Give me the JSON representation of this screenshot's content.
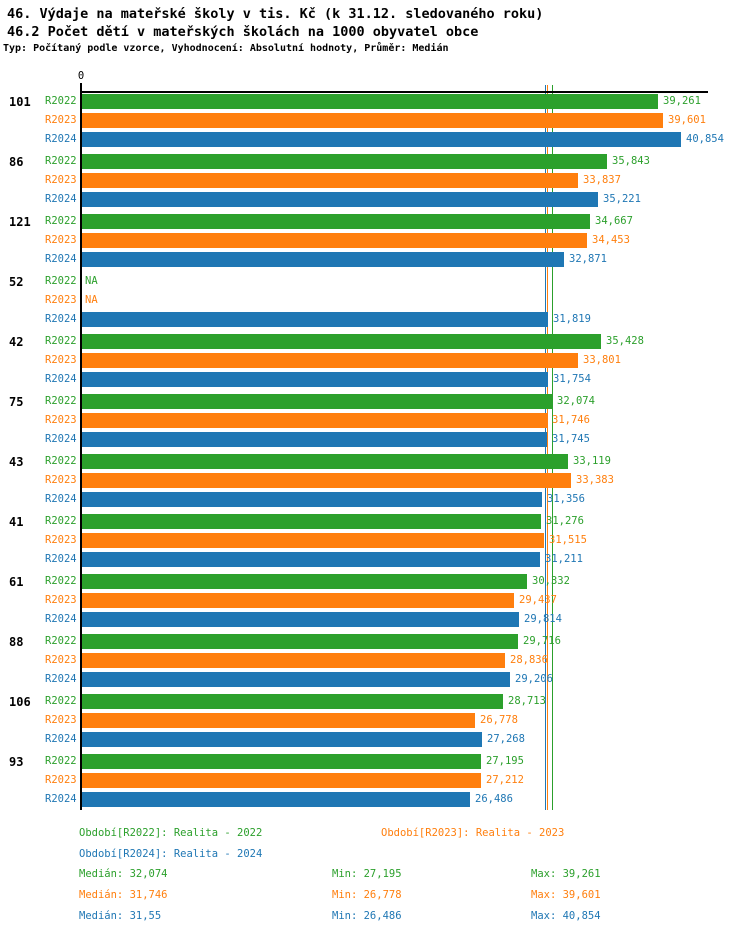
{
  "titles": {
    "line1": "46. Výdaje na mateřské školy v tis. Kč (k 31.12. sledovaného roku)",
    "line2": "46.2 Počet dětí v mateřských školách na 1000 obyvatel obce",
    "subtitle": "Typ: Počítaný podle vzorce, Vyhodnocení: Absolutní hodnoty, Průměr: Medián"
  },
  "axis": {
    "zero_label": "0"
  },
  "colors": {
    "r2022": "#2ca02c",
    "r2023": "#ff7f0e",
    "r2024": "#1f77b4",
    "axis": "#000000"
  },
  "chart_data": {
    "type": "bar",
    "orientation": "horizontal",
    "title": "46. Výdaje na mateřské školy v tis. Kč (k 31.12. sledovaného roku)",
    "subtitle": "46.2 Počet dětí v mateřských školách na 1000 obyvatel obce",
    "value_axis": {
      "min": 0,
      "approx_max": 42.8,
      "tick_labels": [
        "0"
      ],
      "grid": false
    },
    "categories": [
      "101",
      "86",
      "121",
      "52",
      "42",
      "75",
      "43",
      "41",
      "61",
      "88",
      "106",
      "93"
    ],
    "series": [
      {
        "name": "R2022",
        "color": "#2ca02c",
        "values": [
          39.261,
          35.843,
          34.667,
          null,
          35.428,
          32.074,
          33.119,
          31.276,
          30.332,
          29.716,
          28.713,
          27.195
        ],
        "labels": [
          "39,261",
          "35,843",
          "34,667",
          "NA",
          "35,428",
          "32,074",
          "33,119",
          "31,276",
          "30,332",
          "29,716",
          "28,713",
          "27,195"
        ],
        "median": 32.074
      },
      {
        "name": "R2023",
        "color": "#ff7f0e",
        "values": [
          39.601,
          33.837,
          34.453,
          null,
          33.801,
          31.746,
          33.383,
          31.515,
          29.437,
          28.836,
          26.778,
          27.212
        ],
        "labels": [
          "39,601",
          "33,837",
          "34,453",
          "NA",
          "33,801",
          "31,746",
          "33,383",
          "31,515",
          "29,437",
          "28,836",
          "26,778",
          "27,212"
        ],
        "median": 31.746
      },
      {
        "name": "R2024",
        "color": "#1f77b4",
        "values": [
          40.854,
          35.221,
          32.871,
          31.819,
          31.754,
          31.745,
          31.356,
          31.211,
          29.814,
          29.206,
          27.268,
          26.486
        ],
        "labels": [
          "40,854",
          "35,221",
          "32,871",
          "31,819",
          "31,754",
          "31,745",
          "31,356",
          "31,211",
          "29,814",
          "29,206",
          "27,268",
          "26,486"
        ],
        "median": 31.55
      }
    ],
    "legend_position": "bottom"
  },
  "legend": {
    "period_entries": [
      {
        "id": "r2022",
        "text": "Období[R2022]: Realita - 2022",
        "color": "#2ca02c"
      },
      {
        "id": "r2023",
        "text": "Období[R2023]: Realita - 2023",
        "color": "#ff7f0e"
      },
      {
        "id": "r2024",
        "text": "Období[R2024]: Realita - 2024",
        "color": "#1f77b4"
      }
    ],
    "stats_rows": [
      {
        "id": "r2022",
        "color": "#2ca02c",
        "median": "Medián: 32,074",
        "min": "Min: 27,195",
        "max": "Max: 39,261"
      },
      {
        "id": "r2023",
        "color": "#ff7f0e",
        "median": "Medián: 31,746",
        "min": "Min: 26,778",
        "max": "Max: 39,601"
      },
      {
        "id": "r2024",
        "color": "#1f77b4",
        "median": "Medián: 31,55",
        "min": "Min: 26,486",
        "max": "Max: 40,854"
      }
    ]
  }
}
